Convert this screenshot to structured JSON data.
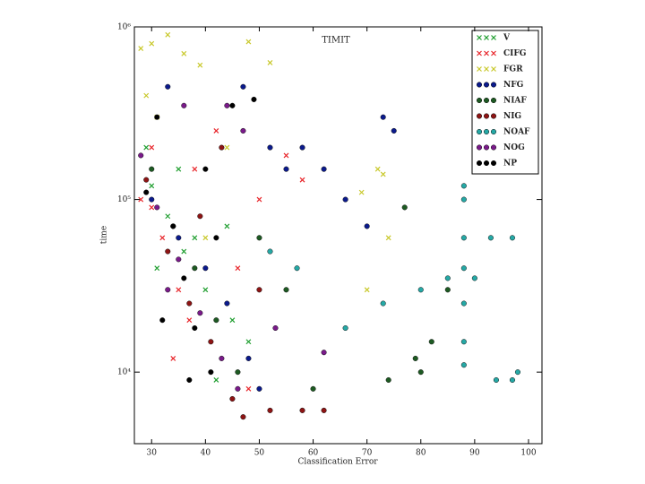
{
  "chart_data": {
    "type": "scatter",
    "title": "TIMIT",
    "x_label": "Classification Error",
    "y_label": "time",
    "xlim": [
      26.8,
      102.5
    ],
    "xticks": [
      30,
      40,
      50,
      60,
      70,
      80,
      90,
      100
    ],
    "ylim": [
      3850,
      1000000
    ],
    "y_log": true,
    "yticks": [
      {
        "value": 10000,
        "label": "10⁴"
      },
      {
        "value": 100000,
        "label": "10⁵"
      },
      {
        "value": 1000000,
        "label": "10⁶"
      }
    ],
    "legend": "upper right",
    "series": [
      {
        "name": "V",
        "color": "#1f9e2f",
        "marker": "x",
        "x": [
          30,
          33,
          36,
          40,
          45,
          29,
          35,
          42,
          38,
          48,
          31,
          44
        ],
        "values": [
          120000,
          80000,
          50000,
          30000,
          20000,
          200000,
          150000,
          9000,
          60000,
          15000,
          40000,
          70000
        ]
      },
      {
        "name": "CIFG",
        "color": "#e8262b",
        "marker": "x",
        "x": [
          28,
          30,
          32,
          35,
          38,
          42,
          46,
          50,
          55,
          58,
          34,
          48,
          30,
          37
        ],
        "values": [
          100000,
          200000,
          60000,
          30000,
          150000,
          250000,
          40000,
          100000,
          180000,
          130000,
          12000,
          8000,
          90000,
          20000
        ]
      },
      {
        "name": "FGR",
        "color": "#c8c82a",
        "marker": "x",
        "x": [
          28,
          30,
          33,
          36,
          39,
          48,
          52,
          29,
          31,
          72,
          73,
          69,
          74,
          70,
          44,
          40
        ],
        "values": [
          750000,
          800000,
          900000,
          700000,
          600000,
          820000,
          620000,
          400000,
          300000,
          150000,
          140000,
          110000,
          60000,
          30000,
          200000,
          60000
        ]
      },
      {
        "name": "NFG",
        "color": "#0b1a8c",
        "marker": "o",
        "x": [
          33,
          47,
          52,
          55,
          58,
          62,
          66,
          70,
          75,
          73,
          30,
          35,
          40,
          44,
          48,
          50
        ],
        "values": [
          450000,
          450000,
          200000,
          150000,
          200000,
          150000,
          100000,
          70000,
          250000,
          300000,
          100000,
          60000,
          40000,
          25000,
          12000,
          8000
        ]
      },
      {
        "name": "NIAF",
        "color": "#1d5a22",
        "marker": "o",
        "x": [
          30,
          34,
          38,
          42,
          46,
          50,
          55,
          77,
          80,
          82,
          74,
          79,
          85,
          60
        ],
        "values": [
          150000,
          70000,
          40000,
          20000,
          10000,
          60000,
          30000,
          90000,
          10000,
          15000,
          9000,
          12000,
          30000,
          8000
        ]
      },
      {
        "name": "NIG",
        "color": "#8e1414",
        "marker": "o",
        "x": [
          29,
          33,
          37,
          41,
          45,
          47,
          52,
          58,
          62,
          39,
          43,
          50
        ],
        "values": [
          130000,
          50000,
          25000,
          15000,
          7000,
          5500,
          6000,
          6000,
          6000,
          80000,
          200000,
          30000
        ]
      },
      {
        "name": "NOAF",
        "color": "#25a9a6",
        "marker": "o",
        "x": [
          88,
          88,
          88,
          88,
          88,
          88,
          88,
          93,
          97,
          98,
          97,
          94,
          85,
          90,
          80,
          73,
          57,
          52,
          66
        ],
        "values": [
          120000,
          100000,
          60000,
          40000,
          25000,
          15000,
          11000,
          60000,
          60000,
          10000,
          9000,
          9000,
          35000,
          35000,
          30000,
          25000,
          40000,
          50000,
          18000
        ]
      },
      {
        "name": "NOG",
        "color": "#7a1a8a",
        "marker": "o",
        "x": [
          28,
          31,
          35,
          39,
          43,
          46,
          36,
          44,
          47,
          53,
          62,
          33
        ],
        "values": [
          180000,
          90000,
          45000,
          22000,
          12000,
          8000,
          350000,
          350000,
          250000,
          18000,
          13000,
          30000
        ]
      },
      {
        "name": "NP",
        "color": "#000000",
        "marker": "o",
        "x": [
          29,
          31,
          34,
          36,
          38,
          41,
          45,
          49,
          40,
          32,
          37,
          42
        ],
        "values": [
          110000,
          300000,
          70000,
          35000,
          18000,
          10000,
          350000,
          380000,
          150000,
          20000,
          9000,
          60000
        ]
      }
    ]
  }
}
